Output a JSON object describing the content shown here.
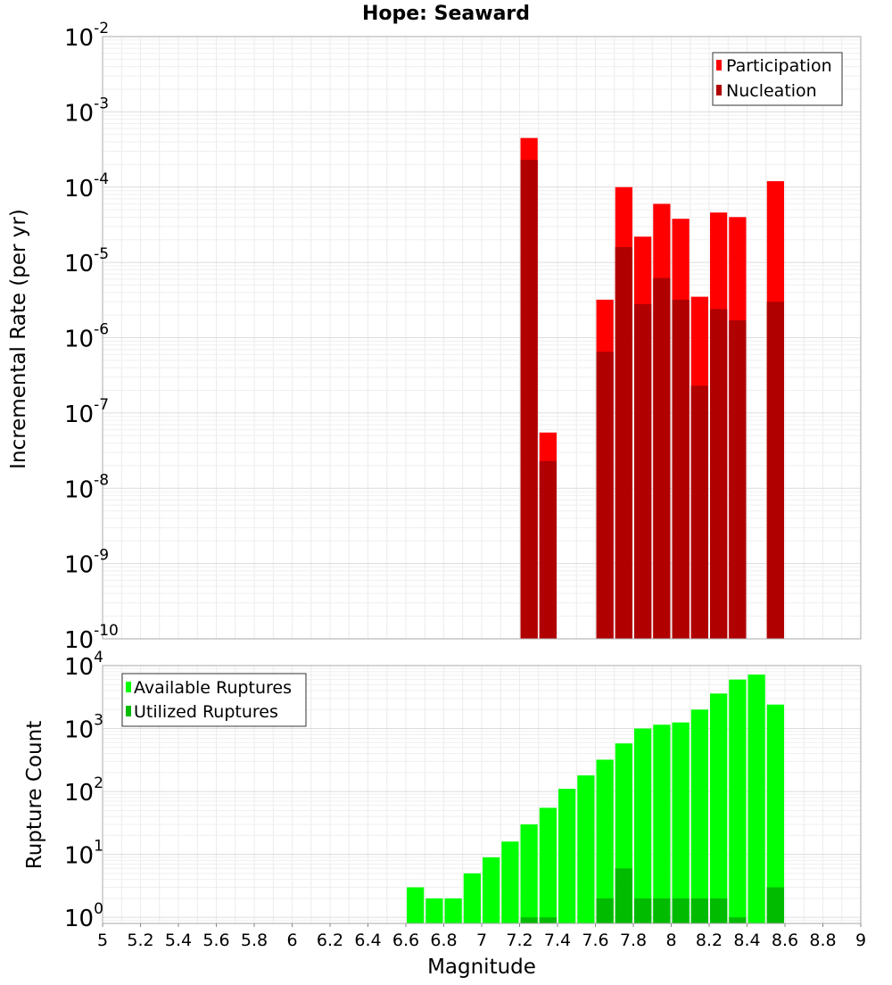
{
  "chart_data": [
    {
      "type": "bar",
      "title": "Hope: Seaward",
      "xlabel": "",
      "ylabel": "Incremental Rate (per yr)",
      "yscale": "log",
      "xlim": [
        5,
        9
      ],
      "ylim": [
        1e-10,
        0.01
      ],
      "bin_width": 0.1,
      "grid": true,
      "legend_position": "top-right",
      "x": [
        7.25,
        7.35,
        7.65,
        7.75,
        7.85,
        7.95,
        8.05,
        8.15,
        8.25,
        8.35,
        8.55
      ],
      "series": [
        {
          "name": "Participation",
          "color": "#ff0000",
          "values": [
            0.00045,
            5.5e-08,
            3.2e-06,
            0.0001,
            2.2e-05,
            6e-05,
            3.8e-05,
            3.5e-06,
            4.6e-05,
            4e-05,
            0.00012
          ]
        },
        {
          "name": "Nucleation",
          "color": "#b00000",
          "values": [
            0.00023,
            2.3e-08,
            6.5e-07,
            1.6e-05,
            2.8e-06,
            6.2e-06,
            3.2e-06,
            2.3e-07,
            2.4e-06,
            1.7e-06,
            3e-06
          ]
        }
      ]
    },
    {
      "type": "bar",
      "title": "",
      "xlabel": "Magnitude",
      "ylabel": "Rupture Count",
      "yscale": "log",
      "xlim": [
        5,
        9
      ],
      "ylim": [
        0.8,
        10000
      ],
      "bin_width": 0.1,
      "grid": true,
      "legend_position": "top-left",
      "x": [
        6.65,
        6.75,
        6.85,
        6.95,
        7.05,
        7.15,
        7.25,
        7.35,
        7.45,
        7.55,
        7.65,
        7.75,
        7.85,
        7.95,
        8.05,
        8.15,
        8.25,
        8.35,
        8.45,
        8.55
      ],
      "x_ticks": [
        "5",
        "5.2",
        "5.4",
        "5.6",
        "5.8",
        "6",
        "6.2",
        "6.4",
        "6.6",
        "6.8",
        "7",
        "7.2",
        "7.4",
        "7.6",
        "7.8",
        "8",
        "8.2",
        "8.4",
        "8.6",
        "8.8",
        "9"
      ],
      "series": [
        {
          "name": "Available Ruptures",
          "color": "#00ff00",
          "values": [
            3,
            2,
            2,
            5,
            9,
            16,
            30,
            55,
            110,
            180,
            320,
            580,
            1000,
            1150,
            1250,
            2000,
            3600,
            6000,
            7200,
            2400
          ]
        },
        {
          "name": "Utilized Ruptures",
          "color": "#00bb00",
          "values": [
            0,
            0,
            0,
            0,
            0,
            0,
            1,
            1,
            0,
            0,
            2,
            6,
            2,
            2,
            2,
            2,
            2,
            1,
            0,
            3
          ]
        }
      ]
    }
  ]
}
